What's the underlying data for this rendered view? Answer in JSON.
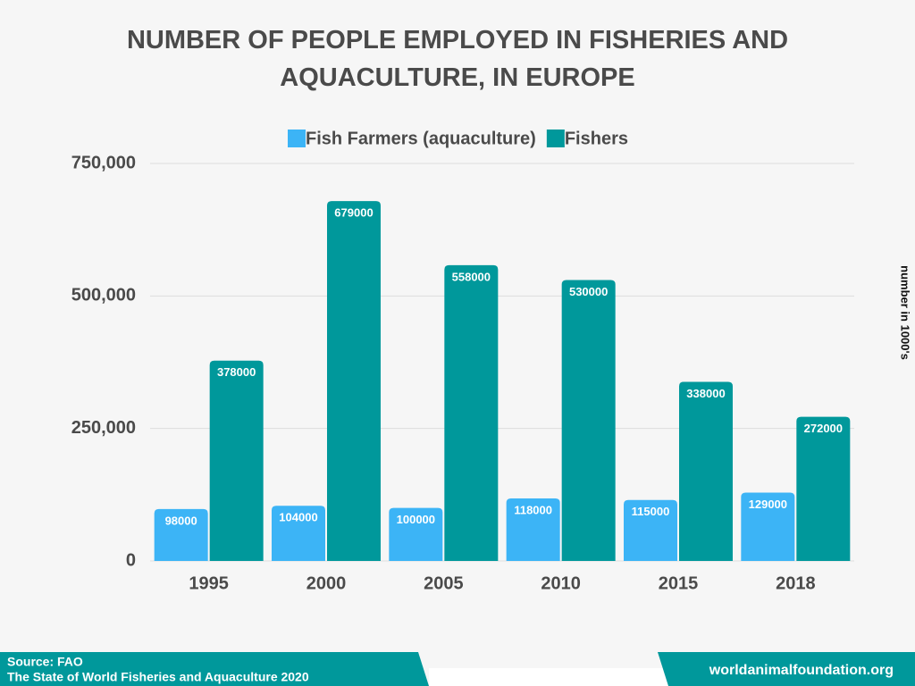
{
  "chart_data": {
    "type": "bar",
    "title": "NUMBER OF PEOPLE EMPLOYED IN FISHERIES AND AQUACULTURE, IN EUROPE",
    "categories": [
      "1995",
      "2000",
      "2005",
      "2010",
      "2015",
      "2018"
    ],
    "series": [
      {
        "name": "Fish Farmers (aquaculture)",
        "color": "#3cb4f6",
        "values": [
          98000,
          104000,
          100000,
          118000,
          115000,
          129000
        ]
      },
      {
        "name": "Fishers",
        "color": "#00989b",
        "values": [
          378000,
          679000,
          558000,
          530000,
          338000,
          272000
        ]
      }
    ],
    "ylim": [
      0,
      750000
    ],
    "yticks": [
      0,
      {
        "value": 250000,
        "label": "250,000"
      },
      {
        "value": 500000,
        "label": "500,000"
      },
      {
        "value": 750000,
        "label": "750,000"
      }
    ],
    "grid": true,
    "legend": "top",
    "y_label": "number in 1000's",
    "source": [
      "Source: FAO",
      "The State of World Fisheries and Aquaculture 2020"
    ],
    "website": "worldanimalfoundation.org"
  }
}
